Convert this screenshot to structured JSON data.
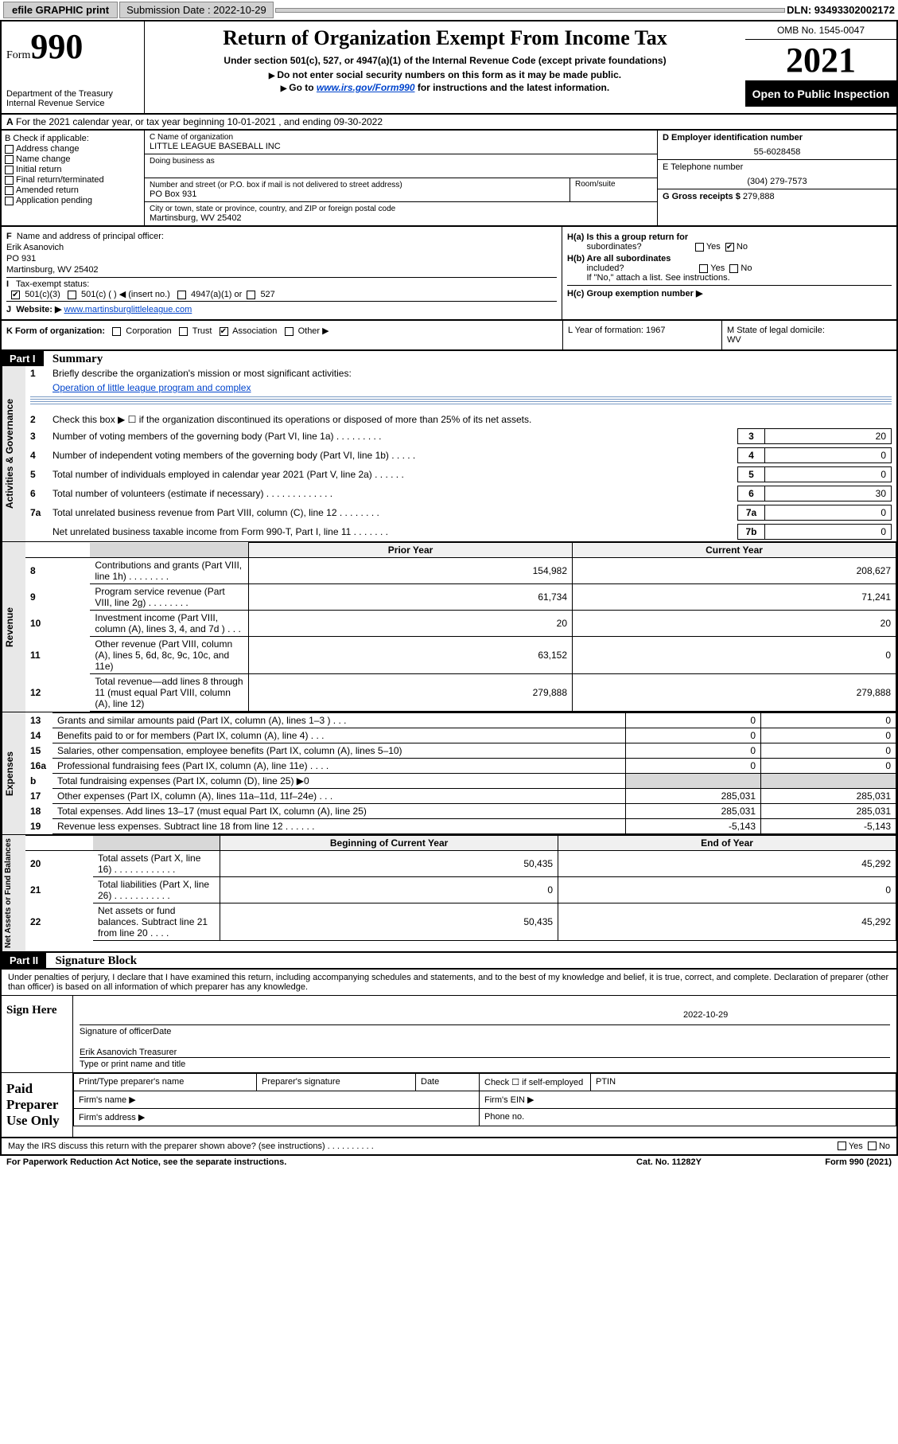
{
  "topbar": {
    "efile": "efile GRAPHIC print",
    "subdate_label": "Submission Date : 2022-10-29",
    "dln": "DLN: 93493302002172"
  },
  "header": {
    "form_prefix": "Form",
    "form_no": "990",
    "title": "Return of Organization Exempt From Income Tax",
    "subtitle": "Under section 501(c), 527, or 4947(a)(1) of the Internal Revenue Code (except private foundations)",
    "note1": "Do not enter social security numbers on this form as it may be made public.",
    "note2_pre": "Go to ",
    "note2_link": "www.irs.gov/Form990",
    "note2_post": " for instructions and the latest information.",
    "dept": "Department of the Treasury",
    "irs": "Internal Revenue Service",
    "omb": "OMB No. 1545-0047",
    "year": "2021",
    "open": "Open to Public Inspection"
  },
  "rowA": {
    "label": "A",
    "text": "For the 2021 calendar year, or tax year beginning 10-01-2021   , and ending 09-30-2022"
  },
  "colB": {
    "title": "B Check if applicable:",
    "items": [
      "Address change",
      "Name change",
      "Initial return",
      "Final return/terminated",
      "Amended return",
      "Application pending"
    ]
  },
  "colC": {
    "name_label": "C Name of organization",
    "name": "LITTLE LEAGUE BASEBALL INC",
    "dba": "Doing business as",
    "addr_label": "Number and street (or P.O. box if mail is not delivered to street address)",
    "room": "Room/suite",
    "addr": "PO Box 931",
    "city_label": "City or town, state or province, country, and ZIP or foreign postal code",
    "city": "Martinsburg, WV  25402"
  },
  "colD": {
    "ein_label": "D Employer identification number",
    "ein": "55-6028458",
    "tel_label": "E Telephone number",
    "tel": "(304) 279-7573",
    "gross_label": "G Gross receipts $",
    "gross": "279,888"
  },
  "secF": {
    "label": "F",
    "text": "Name and address of principal officer:",
    "name": "Erik Asanovich",
    "addr1": "PO 931",
    "addr2": "Martinsburg, WV  25402"
  },
  "secI": {
    "label": "I",
    "text": "Tax-exempt status:",
    "c3": "501(c)(3)",
    "c": "501(c) (  ) ◀ (insert no.)",
    "a1": "4947(a)(1) or",
    "c527": "527"
  },
  "secJ": {
    "label": "J",
    "text": "Website: ▶",
    "url": "www.martinsburglittleleague.com"
  },
  "secH": {
    "a": "H(a)  Is this a group return for",
    "a2": "subordinates?",
    "yes": "Yes",
    "no": "No",
    "b": "H(b)  Are all subordinates",
    "b2": "included?",
    "b3": "If \"No,\" attach a list. See instructions.",
    "c": "H(c)  Group exemption number ▶"
  },
  "secK": {
    "k": "K Form of organization:",
    "corp": "Corporation",
    "trust": "Trust",
    "assoc": "Association",
    "other": "Other ▶",
    "l": "L Year of formation: 1967",
    "m": "M State of legal domicile:",
    "mstate": "WV"
  },
  "part1": {
    "hdr": "Part I",
    "title": "Summary",
    "l1": "Briefly describe the organization's mission or most significant activities:",
    "l1v": "Operation of little league program and complex",
    "l2": "Check this box ▶ ☐  if the organization discontinued its operations or disposed of more than 25% of its net assets.",
    "rows_top": [
      {
        "n": "3",
        "t": "Number of voting members of the governing body (Part VI, line 1a)   .    .    .    .    .    .    .    .    .",
        "k": "3",
        "v": "20"
      },
      {
        "n": "4",
        "t": "Number of independent voting members of the governing body (Part VI, line 1b)    .    .    .    .    .",
        "k": "4",
        "v": "0"
      },
      {
        "n": "5",
        "t": "Total number of individuals employed in calendar year 2021 (Part V, line 2a)    .    .    .    .    .    .",
        "k": "5",
        "v": "0"
      },
      {
        "n": "6",
        "t": "Total number of volunteers (estimate if necessary)    .    .    .    .    .    .    .    .    .    .    .    .    .",
        "k": "6",
        "v": "30"
      },
      {
        "n": "7a",
        "t": "Total unrelated business revenue from Part VIII, column (C), line 12    .    .    .    .    .    .    .    .",
        "k": "7a",
        "v": "0"
      },
      {
        "n": "",
        "t": "Net unrelated business taxable income from Form 990-T, Part I, line 11    .    .    .    .    .    .    .",
        "k": "7b",
        "v": "0"
      }
    ],
    "side1": "Activities & Governance",
    "side2": "Revenue",
    "side3": "Expenses",
    "side4": "Net Assets or Fund Balances",
    "th_prior": "Prior Year",
    "th_curr": "Current Year",
    "th_beg": "Beginning of Current Year",
    "th_end": "End of Year",
    "revenue": [
      {
        "n": "8",
        "t": "Contributions and grants (Part VIII, line 1h)    .    .    .    .    .    .    .    .",
        "p": "154,982",
        "c": "208,627"
      },
      {
        "n": "9",
        "t": "Program service revenue (Part VIII, line 2g)    .    .    .    .    .    .    .    .",
        "p": "61,734",
        "c": "71,241"
      },
      {
        "n": "10",
        "t": "Investment income (Part VIII, column (A), lines 3, 4, and 7d )    .    .    .",
        "p": "20",
        "c": "20"
      },
      {
        "n": "11",
        "t": "Other revenue (Part VIII, column (A), lines 5, 6d, 8c, 9c, 10c, and 11e)",
        "p": "63,152",
        "c": "0"
      },
      {
        "n": "12",
        "t": "Total revenue—add lines 8 through 11 (must equal Part VIII, column (A), line 12)",
        "p": "279,888",
        "c": "279,888"
      }
    ],
    "expenses": [
      {
        "n": "13",
        "t": "Grants and similar amounts paid (Part IX, column (A), lines 1–3 )    .    .    .",
        "p": "0",
        "c": "0"
      },
      {
        "n": "14",
        "t": "Benefits paid to or for members (Part IX, column (A), line 4)    .    .    .",
        "p": "0",
        "c": "0"
      },
      {
        "n": "15",
        "t": "Salaries, other compensation, employee benefits (Part IX, column (A), lines 5–10)",
        "p": "0",
        "c": "0"
      },
      {
        "n": "16a",
        "t": "Professional fundraising fees (Part IX, column (A), line 11e)    .    .    .    .",
        "p": "0",
        "c": "0"
      },
      {
        "n": "b",
        "t": "Total fundraising expenses (Part IX, column (D), line 25) ▶0",
        "p": "",
        "c": "",
        "grey": true
      },
      {
        "n": "17",
        "t": "Other expenses (Part IX, column (A), lines 11a–11d, 11f–24e)    .    .    .",
        "p": "285,031",
        "c": "285,031"
      },
      {
        "n": "18",
        "t": "Total expenses. Add lines 13–17 (must equal Part IX, column (A), line 25)",
        "p": "285,031",
        "c": "285,031"
      },
      {
        "n": "19",
        "t": "Revenue less expenses. Subtract line 18 from line 12    .    .    .    .    .    .",
        "p": "-5,143",
        "c": "-5,143"
      }
    ],
    "netassets": [
      {
        "n": "20",
        "t": "Total assets (Part X, line 16)    .    .    .    .    .    .    .    .    .    .    .    .",
        "p": "50,435",
        "c": "45,292"
      },
      {
        "n": "21",
        "t": "Total liabilities (Part X, line 26)    .    .    .    .    .    .    .    .    .    .    .",
        "p": "0",
        "c": "0"
      },
      {
        "n": "22",
        "t": "Net assets or fund balances. Subtract line 21 from line 20    .    .    .    .",
        "p": "50,435",
        "c": "45,292"
      }
    ]
  },
  "part2": {
    "hdr": "Part II",
    "title": "Signature Block",
    "intro": "Under penalties of perjury, I declare that I have examined this return, including accompanying schedules and statements, and to the best of my knowledge and belief, it is true, correct, and complete. Declaration of preparer (other than officer) is based on all information of which preparer has any knowledge.",
    "sign": "Sign Here",
    "sig_of": "Signature of officer",
    "date": "Date",
    "sig_date": "2022-10-29",
    "typed": "Erik Asanovich  Treasurer",
    "typed_lbl": "Type or print name and title",
    "paid": "Paid Preparer Use Only",
    "pt_name": "Print/Type preparer's name",
    "pt_sig": "Preparer's signature",
    "pt_date": "Date",
    "pt_chk": "Check ☐ if self-employed",
    "pt_ptin": "PTIN",
    "firm_name": "Firm's name   ▶",
    "firm_ein": "Firm's EIN ▶",
    "firm_addr": "Firm's address ▶",
    "phone": "Phone no."
  },
  "foot": {
    "q": "May the IRS discuss this return with the preparer shown above? (see instructions)    .    .    .    .    .    .    .    .    .    .",
    "yes": "Yes",
    "no": "No",
    "pra": "For Paperwork Reduction Act Notice, see the separate instructions.",
    "cat": "Cat. No. 11282Y",
    "form": "Form 990 (2021)"
  }
}
